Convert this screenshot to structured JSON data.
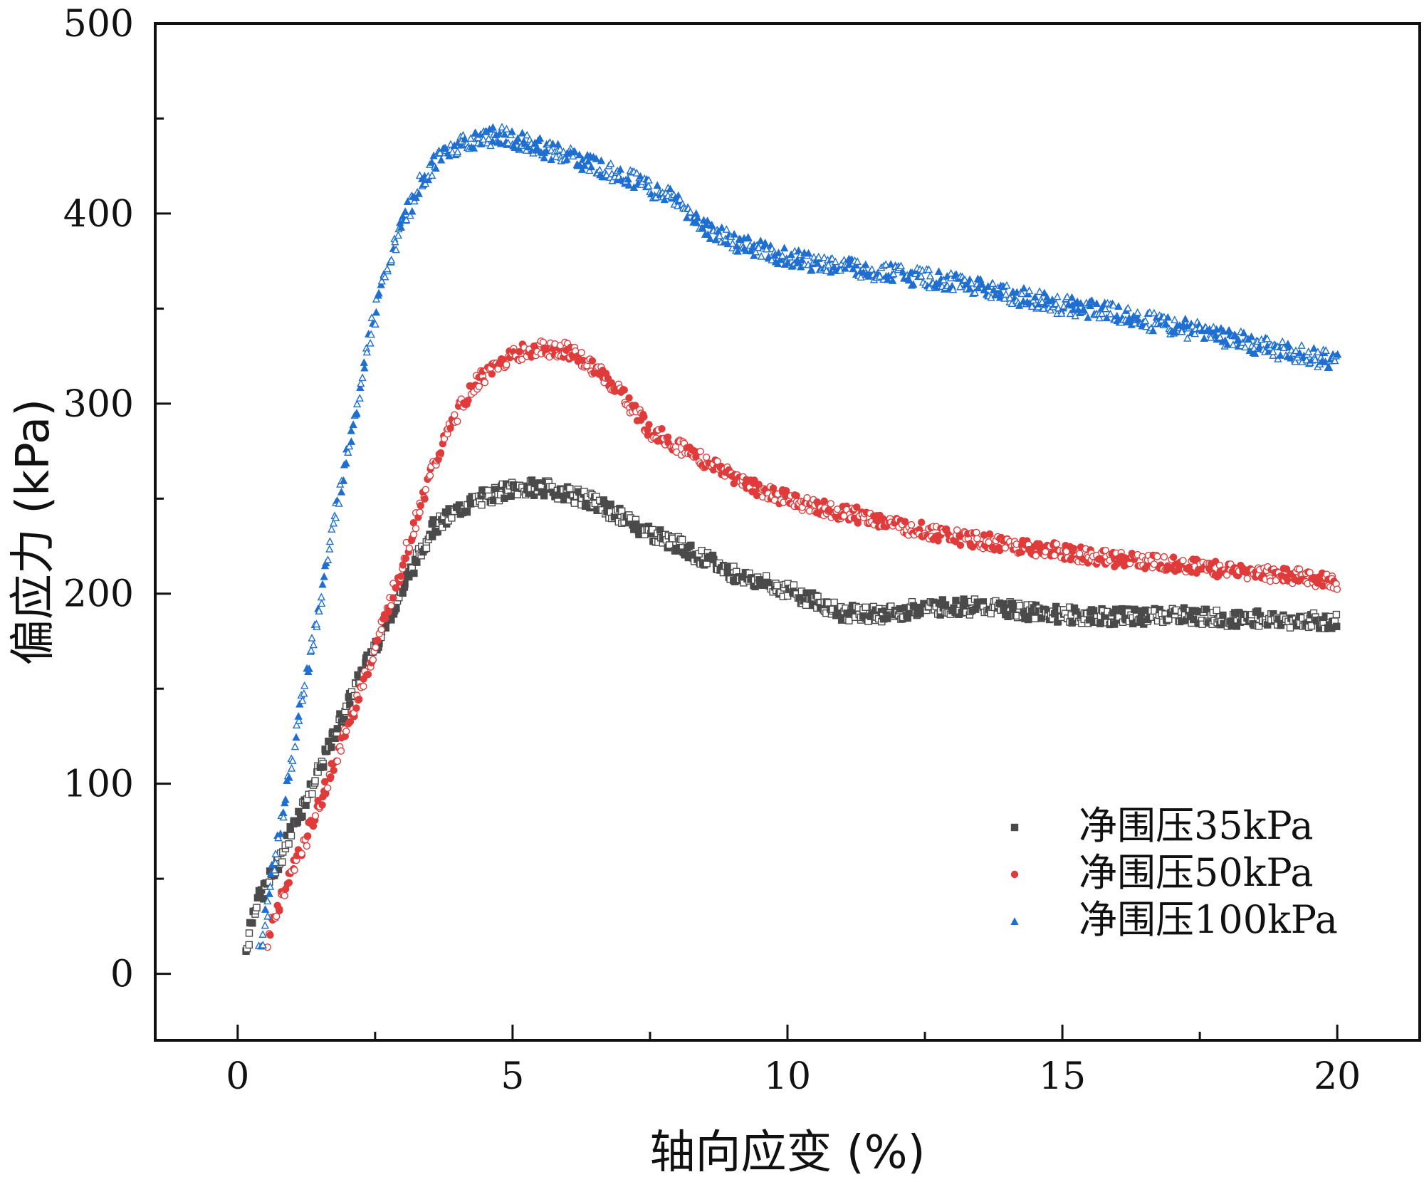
{
  "chart_data": {
    "type": "scatter",
    "title": "",
    "xlabel": "轴向应变 (%)",
    "ylabel": "偏应力 (kPa)",
    "xlim": [
      -1.5,
      21.5
    ],
    "ylim": [
      -35,
      500
    ],
    "xticks": [
      0,
      5,
      10,
      15,
      20
    ],
    "yticks": [
      0,
      100,
      200,
      300,
      400,
      500
    ],
    "legend_position": "bottom-right",
    "grid": false,
    "series": [
      {
        "name": "净围压35kPa",
        "color": "#4a4a4a",
        "marker": "square",
        "points": [
          [
            0.15,
            12
          ],
          [
            0.3,
            35
          ],
          [
            0.5,
            45
          ],
          [
            0.8,
            62
          ],
          [
            1.0,
            77
          ],
          [
            1.3,
            95
          ],
          [
            1.6,
            115
          ],
          [
            2.0,
            142
          ],
          [
            2.4,
            167
          ],
          [
            2.8,
            190
          ],
          [
            3.2,
            215
          ],
          [
            3.5,
            233
          ],
          [
            4.0,
            244
          ],
          [
            4.5,
            251
          ],
          [
            5.0,
            255
          ],
          [
            5.5,
            256
          ],
          [
            6.0,
            253
          ],
          [
            6.5,
            248
          ],
          [
            7.0,
            240
          ],
          [
            7.5,
            232
          ],
          [
            8.0,
            226
          ],
          [
            8.5,
            218
          ],
          [
            9.0,
            211
          ],
          [
            9.5,
            206
          ],
          [
            10.0,
            202
          ],
          [
            10.5,
            196
          ],
          [
            11.0,
            190
          ],
          [
            11.5,
            189
          ],
          [
            12.0,
            190
          ],
          [
            12.5,
            193
          ],
          [
            13.0,
            193
          ],
          [
            13.5,
            193
          ],
          [
            14.0,
            192
          ],
          [
            14.5,
            190
          ],
          [
            15.0,
            189
          ],
          [
            15.5,
            188
          ],
          [
            16.0,
            188
          ],
          [
            16.5,
            188
          ],
          [
            17.0,
            189
          ],
          [
            17.5,
            188
          ],
          [
            18.0,
            187
          ],
          [
            18.5,
            187
          ],
          [
            19.0,
            186
          ],
          [
            19.5,
            186
          ],
          [
            20.0,
            185
          ]
        ]
      },
      {
        "name": "净围压50kPa",
        "color": "#e03b3b",
        "marker": "circle",
        "points": [
          [
            0.55,
            12
          ],
          [
            0.6,
            25
          ],
          [
            0.8,
            40
          ],
          [
            1.0,
            55
          ],
          [
            1.3,
            75
          ],
          [
            1.6,
            98
          ],
          [
            2.0,
            130
          ],
          [
            2.3,
            155
          ],
          [
            2.6,
            180
          ],
          [
            3.0,
            215
          ],
          [
            3.3,
            245
          ],
          [
            3.6,
            270
          ],
          [
            4.0,
            295
          ],
          [
            4.3,
            310
          ],
          [
            4.7,
            320
          ],
          [
            5.0,
            326
          ],
          [
            5.5,
            329
          ],
          [
            6.0,
            328
          ],
          [
            6.5,
            318
          ],
          [
            7.0,
            305
          ],
          [
            7.5,
            286
          ],
          [
            8.0,
            278
          ],
          [
            8.5,
            270
          ],
          [
            9.0,
            262
          ],
          [
            9.5,
            255
          ],
          [
            10.0,
            250
          ],
          [
            10.5,
            246
          ],
          [
            11.0,
            243
          ],
          [
            11.5,
            240
          ],
          [
            12.0,
            236
          ],
          [
            12.5,
            233
          ],
          [
            13.0,
            230
          ],
          [
            13.5,
            228
          ],
          [
            14.0,
            226
          ],
          [
            14.5,
            224
          ],
          [
            15.0,
            222
          ],
          [
            15.5,
            220
          ],
          [
            16.0,
            218
          ],
          [
            16.5,
            217
          ],
          [
            17.0,
            216
          ],
          [
            17.5,
            214
          ],
          [
            18.0,
            212
          ],
          [
            18.5,
            211
          ],
          [
            19.0,
            210
          ],
          [
            19.5,
            208
          ],
          [
            20.0,
            206
          ]
        ]
      },
      {
        "name": "净围压100kPa",
        "color": "#1f6fd1",
        "marker": "triangle",
        "points": [
          [
            0.4,
            10
          ],
          [
            0.5,
            28
          ],
          [
            0.6,
            50
          ],
          [
            0.8,
            80
          ],
          [
            1.0,
            115
          ],
          [
            1.2,
            150
          ],
          [
            1.5,
            195
          ],
          [
            1.8,
            245
          ],
          [
            2.1,
            290
          ],
          [
            2.4,
            335
          ],
          [
            2.7,
            370
          ],
          [
            3.0,
            395
          ],
          [
            3.3,
            415
          ],
          [
            3.6,
            428
          ],
          [
            4.0,
            436
          ],
          [
            4.4,
            440
          ],
          [
            4.8,
            441
          ],
          [
            5.2,
            438
          ],
          [
            5.6,
            434
          ],
          [
            6.0,
            430
          ],
          [
            6.5,
            425
          ],
          [
            7.0,
            420
          ],
          [
            7.5,
            414
          ],
          [
            8.0,
            406
          ],
          [
            8.5,
            392
          ],
          [
            9.0,
            386
          ],
          [
            9.5,
            381
          ],
          [
            10.0,
            377
          ],
          [
            10.5,
            374
          ],
          [
            11.0,
            372
          ],
          [
            11.5,
            370
          ],
          [
            12.0,
            368
          ],
          [
            12.5,
            366
          ],
          [
            13.0,
            364
          ],
          [
            13.5,
            361
          ],
          [
            14.0,
            358
          ],
          [
            14.5,
            355
          ],
          [
            15.0,
            352
          ],
          [
            15.5,
            350
          ],
          [
            16.0,
            347
          ],
          [
            16.5,
            344
          ],
          [
            17.0,
            341
          ],
          [
            17.5,
            338
          ],
          [
            18.0,
            335
          ],
          [
            18.5,
            331
          ],
          [
            19.0,
            328
          ],
          [
            19.5,
            325
          ],
          [
            20.0,
            322
          ]
        ]
      }
    ]
  }
}
